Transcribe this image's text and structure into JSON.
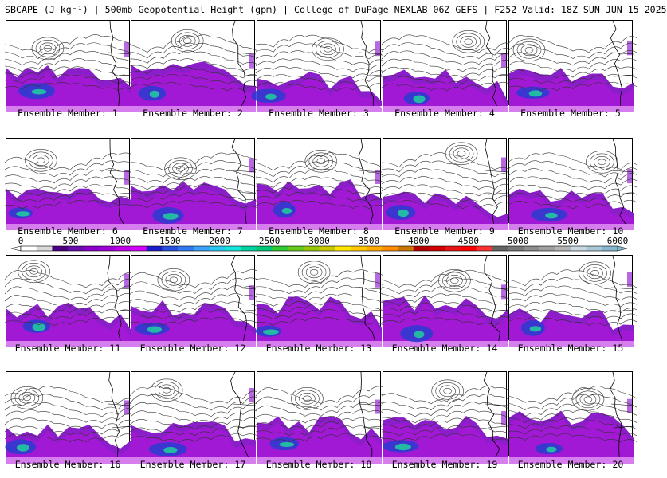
{
  "title": "SBCAPE (J kg⁻¹) | 500mb Geopotential Height (gpm) | College of DuPage NEXLAB 06Z GEFS | F252 Valid: 18Z SUN JUN 15 2025",
  "panels": [
    {
      "label": "Ensemble Member: 1"
    },
    {
      "label": "Ensemble Member: 2"
    },
    {
      "label": "Ensemble Member: 3"
    },
    {
      "label": "Ensemble Member: 4"
    },
    {
      "label": "Ensemble Member: 5"
    },
    {
      "label": "Ensemble Member: 6"
    },
    {
      "label": "Ensemble Member: 7"
    },
    {
      "label": "Ensemble Member: 8"
    },
    {
      "label": "Ensemble Member: 9"
    },
    {
      "label": "Ensemble Member: 10"
    },
    {
      "label": "Ensemble Member: 11"
    },
    {
      "label": "Ensemble Member: 12"
    },
    {
      "label": "Ensemble Member: 13"
    },
    {
      "label": "Ensemble Member: 14"
    },
    {
      "label": "Ensemble Member: 15"
    },
    {
      "label": "Ensemble Member: 16"
    },
    {
      "label": "Ensemble Member: 17"
    },
    {
      "label": "Ensemble Member: 18"
    },
    {
      "label": "Ensemble Member: 19"
    },
    {
      "label": "Ensemble Member: 20"
    }
  ],
  "colorbar": {
    "ticks": [
      "0",
      "500",
      "1000",
      "1500",
      "2000",
      "2500",
      "3000",
      "3500",
      "4000",
      "4500",
      "5000",
      "5500",
      "6000"
    ],
    "colors": [
      "#ffffff",
      "#d8d8d8",
      "#4b0082",
      "#6a0dad",
      "#8b00c8",
      "#a000d8",
      "#c000e8",
      "#d600ff",
      "#1e1ec8",
      "#2850dc",
      "#3278f0",
      "#3ca0ff",
      "#28c8f0",
      "#14e6dc",
      "#00d2a0",
      "#00c878",
      "#32c832",
      "#64c81e",
      "#96c80a",
      "#c8c800",
      "#ffe600",
      "#ffc800",
      "#ffaa00",
      "#ff8c00",
      "#c87800",
      "#b40000",
      "#d20000",
      "#e61414",
      "#ff0000",
      "#ff3232",
      "#646464",
      "#787878",
      "#8c8c8c",
      "#a0a0a0",
      "#b4b4b4",
      "#c8d8e0",
      "#a8c8d8",
      "#88b8d0"
    ]
  }
}
